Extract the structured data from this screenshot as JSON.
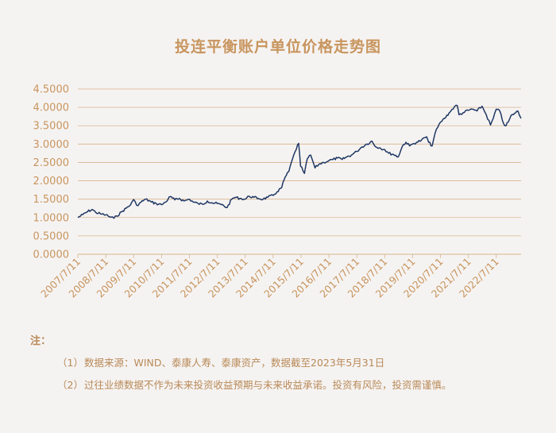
{
  "chart_data": {
    "type": "line",
    "title": "投连平衡账户单位价格走势图",
    "xlabel": "",
    "ylabel": "",
    "ylim": [
      0,
      4.5
    ],
    "y_ticks": [
      "0.0000",
      "0.5000",
      "1.0000",
      "1.5000",
      "2.0000",
      "2.5000",
      "3.0000",
      "3.5000",
      "4.0000",
      "4.5000"
    ],
    "x_ticks": [
      "2007/7/11",
      "2008/7/11",
      "2009/7/11",
      "2010/7/11",
      "2011/7/11",
      "2012/7/11",
      "2013/7/11",
      "2014/7/11",
      "2015/7/11",
      "2016/7/11",
      "2017/7/11",
      "2018/7/11",
      "2019/7/11",
      "2020/7/11",
      "2021/7/11",
      "2022/7/11"
    ],
    "grid": "horizontal",
    "colors": {
      "line": "#1f3864",
      "text": "#c8955e",
      "grid": "#d9b48c"
    },
    "series": [
      {
        "points": [
          [
            "2007/7/11",
            1.0
          ],
          [
            "2007/9/15",
            1.08
          ],
          [
            "2007/11/15",
            1.16
          ],
          [
            "2008/1/15",
            1.22
          ],
          [
            "2008/3/1",
            1.14
          ],
          [
            "2008/5/1",
            1.1
          ],
          [
            "2008/7/11",
            1.07
          ],
          [
            "2008/9/1",
            1.02
          ],
          [
            "2008/10/25",
            0.98
          ],
          [
            "2008/12/1",
            1.04
          ],
          [
            "2009/2/1",
            1.15
          ],
          [
            "2009/4/1",
            1.25
          ],
          [
            "2009/6/1",
            1.35
          ],
          [
            "2009/7/11",
            1.49
          ],
          [
            "2009/8/20",
            1.33
          ],
          [
            "2009/10/15",
            1.42
          ],
          [
            "2009/12/15",
            1.5
          ],
          [
            "2010/3/1",
            1.42
          ],
          [
            "2010/5/1",
            1.38
          ],
          [
            "2010/7/11",
            1.35
          ],
          [
            "2010/9/1",
            1.42
          ],
          [
            "2010/11/1",
            1.57
          ],
          [
            "2011/1/1",
            1.48
          ],
          [
            "2011/3/1",
            1.52
          ],
          [
            "2011/5/1",
            1.45
          ],
          [
            "2011/7/11",
            1.5
          ],
          [
            "2011/9/1",
            1.42
          ],
          [
            "2011/11/1",
            1.38
          ],
          [
            "2012/1/1",
            1.36
          ],
          [
            "2012/3/1",
            1.45
          ],
          [
            "2012/5/1",
            1.4
          ],
          [
            "2012/7/11",
            1.38
          ],
          [
            "2012/9/1",
            1.35
          ],
          [
            "2012/11/15",
            1.27
          ],
          [
            "2013/1/15",
            1.5
          ],
          [
            "2013/3/1",
            1.55
          ],
          [
            "2013/5/1",
            1.52
          ],
          [
            "2013/7/11",
            1.5
          ],
          [
            "2013/9/1",
            1.58
          ],
          [
            "2013/11/1",
            1.55
          ],
          [
            "2014/1/1",
            1.52
          ],
          [
            "2014/3/1",
            1.5
          ],
          [
            "2014/5/1",
            1.55
          ],
          [
            "2014/7/11",
            1.6
          ],
          [
            "2014/9/1",
            1.7
          ],
          [
            "2014/11/1",
            1.82
          ],
          [
            "2014/12/15",
            2.1
          ],
          [
            "2015/2/1",
            2.25
          ],
          [
            "2015/3/15",
            2.55
          ],
          [
            "2015/4/25",
            2.8
          ],
          [
            "2015/6/10",
            3.02
          ],
          [
            "2015/7/5",
            2.4
          ],
          [
            "2015/8/25",
            2.2
          ],
          [
            "2015/10/1",
            2.6
          ],
          [
            "2015/11/15",
            2.7
          ],
          [
            "2016/1/10",
            2.35
          ],
          [
            "2016/3/1",
            2.45
          ],
          [
            "2016/5/1",
            2.5
          ],
          [
            "2016/7/11",
            2.55
          ],
          [
            "2016/9/1",
            2.58
          ],
          [
            "2016/11/1",
            2.62
          ],
          [
            "2017/1/1",
            2.58
          ],
          [
            "2017/3/1",
            2.65
          ],
          [
            "2017/5/1",
            2.7
          ],
          [
            "2017/7/11",
            2.8
          ],
          [
            "2017/9/1",
            2.9
          ],
          [
            "2017/11/1",
            2.98
          ],
          [
            "2018/1/25",
            3.08
          ],
          [
            "2018/3/1",
            2.95
          ],
          [
            "2018/5/1",
            2.9
          ],
          [
            "2018/7/11",
            2.85
          ],
          [
            "2018/9/1",
            2.75
          ],
          [
            "2018/11/1",
            2.72
          ],
          [
            "2019/1/3",
            2.65
          ],
          [
            "2019/3/1",
            2.95
          ],
          [
            "2019/4/15",
            3.05
          ],
          [
            "2019/6/1",
            2.95
          ],
          [
            "2019/7/11",
            3.0
          ],
          [
            "2019/9/1",
            3.05
          ],
          [
            "2019/11/1",
            3.1
          ],
          [
            "2020/1/10",
            3.2
          ],
          [
            "2020/2/5",
            3.05
          ],
          [
            "2020/3/23",
            2.95
          ],
          [
            "2020/5/1",
            3.3
          ],
          [
            "2020/7/11",
            3.6
          ],
          [
            "2020/9/1",
            3.7
          ],
          [
            "2020/11/1",
            3.85
          ],
          [
            "2021/1/10",
            4.02
          ],
          [
            "2021/2/15",
            4.05
          ],
          [
            "2021/3/10",
            3.8
          ],
          [
            "2021/5/1",
            3.85
          ],
          [
            "2021/7/11",
            3.92
          ],
          [
            "2021/9/1",
            3.95
          ],
          [
            "2021/11/1",
            3.9
          ],
          [
            "2022/1/5",
            4.03
          ],
          [
            "2022/3/1",
            3.8
          ],
          [
            "2022/4/26",
            3.52
          ],
          [
            "2022/6/1",
            3.7
          ],
          [
            "2022/7/11",
            3.95
          ],
          [
            "2022/8/25",
            3.9
          ],
          [
            "2022/10/15",
            3.55
          ],
          [
            "2022/11/15",
            3.5
          ],
          [
            "2022/12/15",
            3.6
          ],
          [
            "2023/1/20",
            3.78
          ],
          [
            "2023/2/20",
            3.8
          ],
          [
            "2023/3/20",
            3.85
          ],
          [
            "2023/4/20",
            3.9
          ],
          [
            "2023/5/31",
            3.7
          ]
        ]
      }
    ]
  },
  "notes": {
    "heading": "注：",
    "items": [
      {
        "num": "（1）",
        "text": "数据来源：WIND、泰康人寿、泰康资产，数据截至2023年5月31日"
      },
      {
        "num": "（2）",
        "text": "过往业绩数据不作为未来投资收益预期与未来收益承诺。投资有风险，投资需谨慎。"
      }
    ]
  }
}
